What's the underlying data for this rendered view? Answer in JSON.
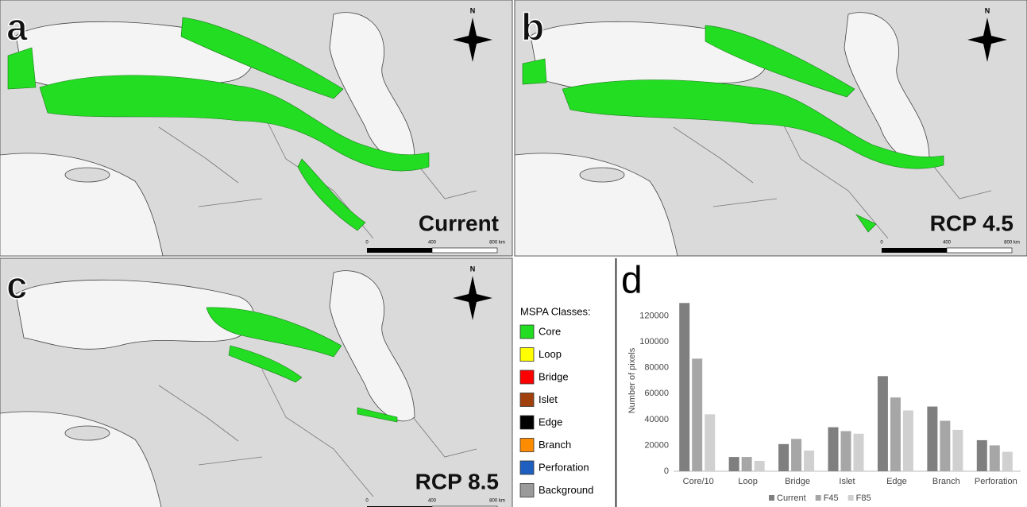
{
  "maps": [
    {
      "panel": "a",
      "scenario": "Current",
      "north": "N",
      "scale": [
        "0",
        "400",
        "800 km"
      ]
    },
    {
      "panel": "b",
      "scenario": "RCP 4.5",
      "north": "N",
      "scale": [
        "0",
        "400",
        "800 km"
      ]
    },
    {
      "panel": "c",
      "scenario": "RCP 8.5",
      "north": "N",
      "scale": [
        "0",
        "400",
        "800 km"
      ]
    }
  ],
  "legend": {
    "title": "MSPA Classes:",
    "items": [
      {
        "label": "Core",
        "color": "#22dd22"
      },
      {
        "label": "Loop",
        "color": "#ffff00"
      },
      {
        "label": "Bridge",
        "color": "#ff0000"
      },
      {
        "label": "Islet",
        "color": "#a0410d"
      },
      {
        "label": "Edge",
        "color": "#000000"
      },
      {
        "label": "Branch",
        "color": "#ff8c00"
      },
      {
        "label": "Perforation",
        "color": "#1f5fbf"
      },
      {
        "label": "Background",
        "color": "#9a9a9a"
      }
    ]
  },
  "chart_data": {
    "type": "bar",
    "panel_label": "d",
    "y_label": "Number of pixels",
    "categories": [
      "Core/10",
      "Loop",
      "Bridge",
      "Islet",
      "Edge",
      "Branch",
      "Perforation"
    ],
    "series": [
      {
        "name": "Current",
        "color": "#7f7f7f",
        "values": [
          130000,
          11000,
          21000,
          34000,
          73500,
          50000,
          24000
        ]
      },
      {
        "name": "F45",
        "color": "#a6a6a6",
        "values": [
          87000,
          11000,
          25000,
          31000,
          57000,
          39000,
          20000
        ]
      },
      {
        "name": "F85",
        "color": "#d0d0d0",
        "values": [
          44000,
          8000,
          16000,
          29000,
          47000,
          32000,
          15000
        ]
      }
    ],
    "ylim": [
      0,
      140000
    ],
    "yticks": [
      0,
      20000,
      40000,
      60000,
      80000,
      100000,
      120000
    ],
    "grid": false,
    "legend": "bottom"
  }
}
